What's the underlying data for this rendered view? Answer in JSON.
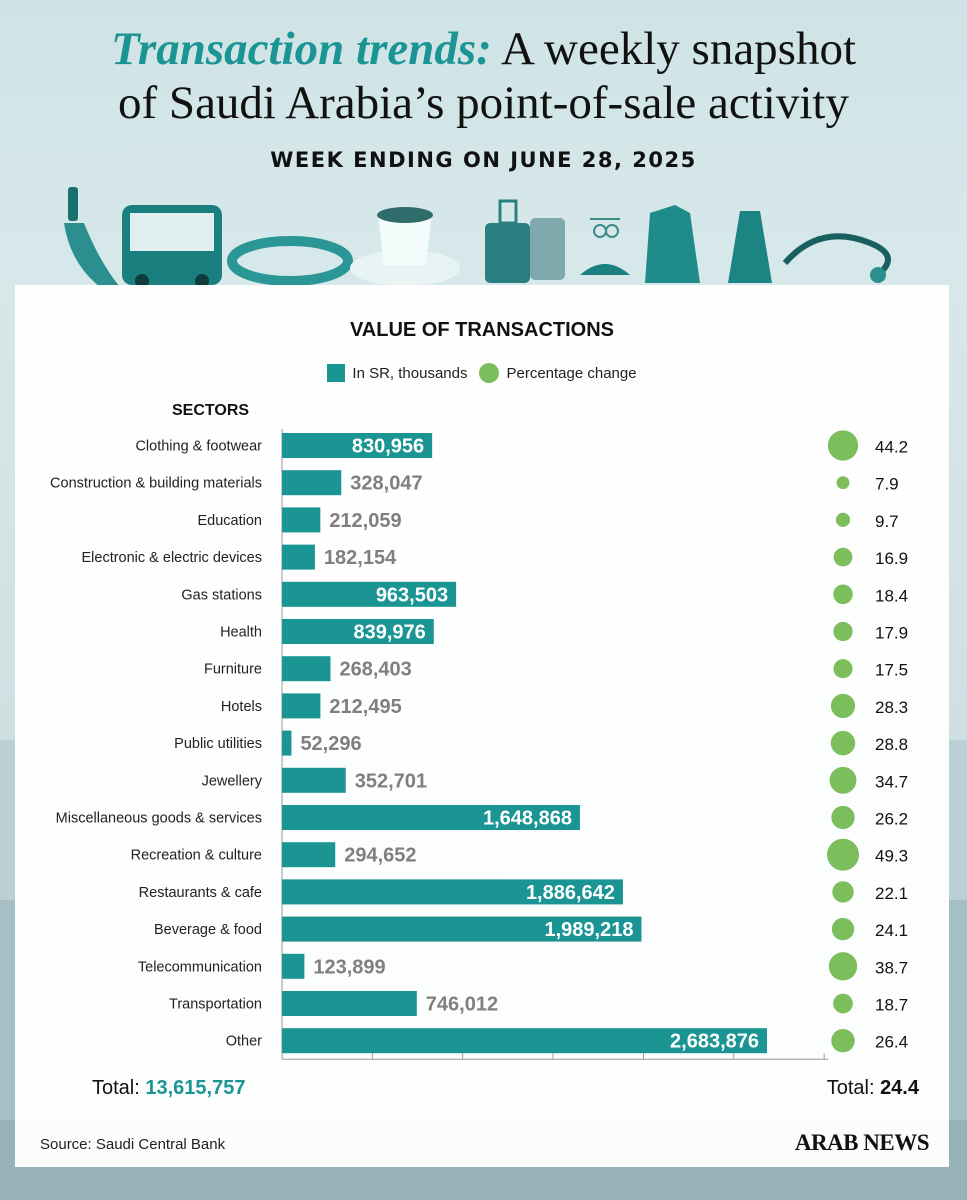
{
  "header": {
    "title_accent": "Transaction trends:",
    "title_rest": " A weekly snapshot",
    "title_line2": "of Saudi Arabia’s point-of-sale activity",
    "subtitle": "WEEK ENDING ON JUNE 28, 2025"
  },
  "chart_data": {
    "type": "bar",
    "title": "VALUE OF TRANSACTIONS",
    "legend": [
      "In SR, thousands",
      "Percentage change"
    ],
    "category_header": "SECTORS",
    "categories": [
      "Clothing & footwear",
      "Construction & building materials",
      "Education",
      "Electronic & electric devices",
      "Gas stations",
      "Health",
      "Furniture",
      "Hotels",
      "Public utilities",
      "Jewellery",
      "Miscellaneous goods & services",
      "Recreation & culture",
      "Restaurants & cafe",
      "Beverage & food",
      "Telecommunication",
      "Transportation",
      "Other"
    ],
    "series": [
      {
        "name": "In SR, thousands",
        "values": [
          830956,
          328047,
          212059,
          182154,
          963503,
          839976,
          268403,
          212495,
          52296,
          352701,
          1648868,
          294652,
          1886642,
          1989218,
          123899,
          746012,
          2683876
        ],
        "labels": [
          "830,956",
          "328,047",
          "212,059",
          "182,154",
          "963,503",
          "839,976",
          "268,403",
          "212,495",
          "52,296",
          "352,701",
          "1,648,868",
          "294,652",
          "1,886,642",
          "1,989,218",
          "123,899",
          "746,012",
          "2,683,876"
        ]
      },
      {
        "name": "Percentage change",
        "values": [
          44.2,
          7.9,
          9.7,
          16.9,
          18.4,
          17.9,
          17.5,
          28.3,
          28.8,
          34.7,
          26.2,
          49.3,
          22.1,
          24.1,
          38.7,
          18.7,
          26.4
        ],
        "labels": [
          "44.2",
          "7.9",
          "9.7",
          "16.9",
          "18.4",
          "17.9",
          "17.5",
          "28.3",
          "28.8",
          "34.7",
          "26.2",
          "49.3",
          "22.1",
          "24.1",
          "38.7",
          "18.7",
          "26.4"
        ]
      }
    ],
    "xlim": [
      0,
      3000000
    ],
    "colors": {
      "bar": "#1a9594",
      "bubble": "#7cbd5c"
    }
  },
  "totals": {
    "left_label": "Total: ",
    "left_value": "13,615,757",
    "right_label": "Total: ",
    "right_value": "24.4"
  },
  "footer": {
    "source": "Source: Saudi Central Bank",
    "brand": "ARAB NEWS"
  },
  "icons": [
    "phone-hand-icon",
    "bus-icon",
    "bracelet-icon",
    "coffee-cup-icon",
    "luggage-icon",
    "jewelry-icon",
    "sandals-icon",
    "shirt-icon",
    "dress-icon",
    "stethoscope-icon"
  ]
}
